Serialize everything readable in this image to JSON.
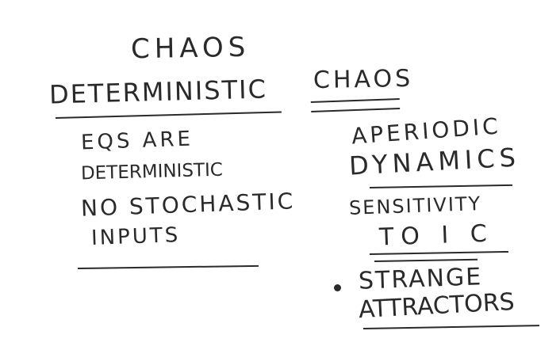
{
  "board": {
    "title": "CHAOS",
    "left_heading": "DETERMINISTIC",
    "right_heading": "CHAOS",
    "left_items": [
      "EQS ARE",
      "DETERMINISTIC",
      "NO STOCHASTIC",
      "INPUTS"
    ],
    "right_items": [
      "APERIODIC",
      "DYNAMICS",
      "SENSITIVITY",
      "TO I C",
      "STRANGE",
      "ATTRACTORS"
    ]
  }
}
